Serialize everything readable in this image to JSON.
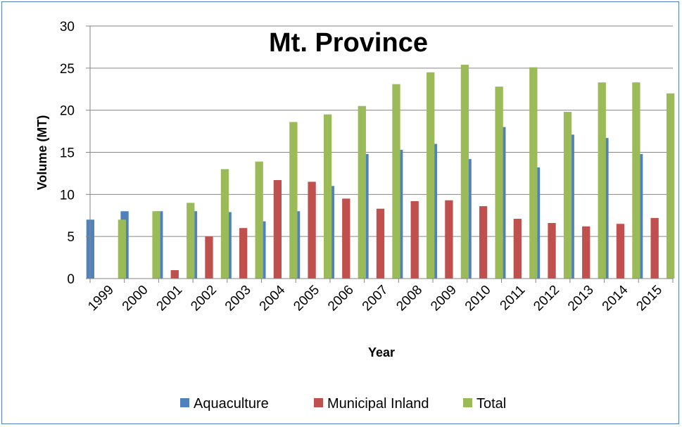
{
  "chart_data": {
    "type": "bar",
    "title": "Mt. Province",
    "xlabel": "Year",
    "ylabel": "Volume (MT)",
    "ylim": [
      0,
      30
    ],
    "yticks": [
      0,
      5,
      10,
      15,
      20,
      25,
      30
    ],
    "grid": true,
    "legend_position": "bottom",
    "categories": [
      "1999",
      "2000",
      "2001",
      "2002",
      "2003",
      "2004",
      "2005",
      "2006",
      "2007",
      "2008",
      "2009",
      "2010",
      "2011",
      "2012",
      "2013",
      "2014",
      "2015"
    ],
    "series": [
      {
        "name": "Aquaculture",
        "color": "#4f81bd",
        "values": [
          7,
          8,
          8,
          8,
          7.9,
          6.8,
          8,
          11,
          14.8,
          15.3,
          16,
          14.2,
          18,
          13.2,
          17.1,
          16.7,
          14.8
        ]
      },
      {
        "name": "Municipal Inland",
        "color": "#c0504d",
        "values": [
          0,
          0,
          1,
          5,
          6,
          11.7,
          11.5,
          9.5,
          8.3,
          9.2,
          9.3,
          8.6,
          7.1,
          6.6,
          6.2,
          6.5,
          7.2
        ]
      },
      {
        "name": "Total",
        "color": "#9bbb59",
        "values": [
          7,
          8,
          9,
          13,
          13.9,
          18.6,
          19.5,
          20.5,
          23.1,
          24.5,
          25.4,
          22.8,
          25.1,
          19.8,
          23.3,
          23.3,
          22
        ]
      }
    ]
  }
}
